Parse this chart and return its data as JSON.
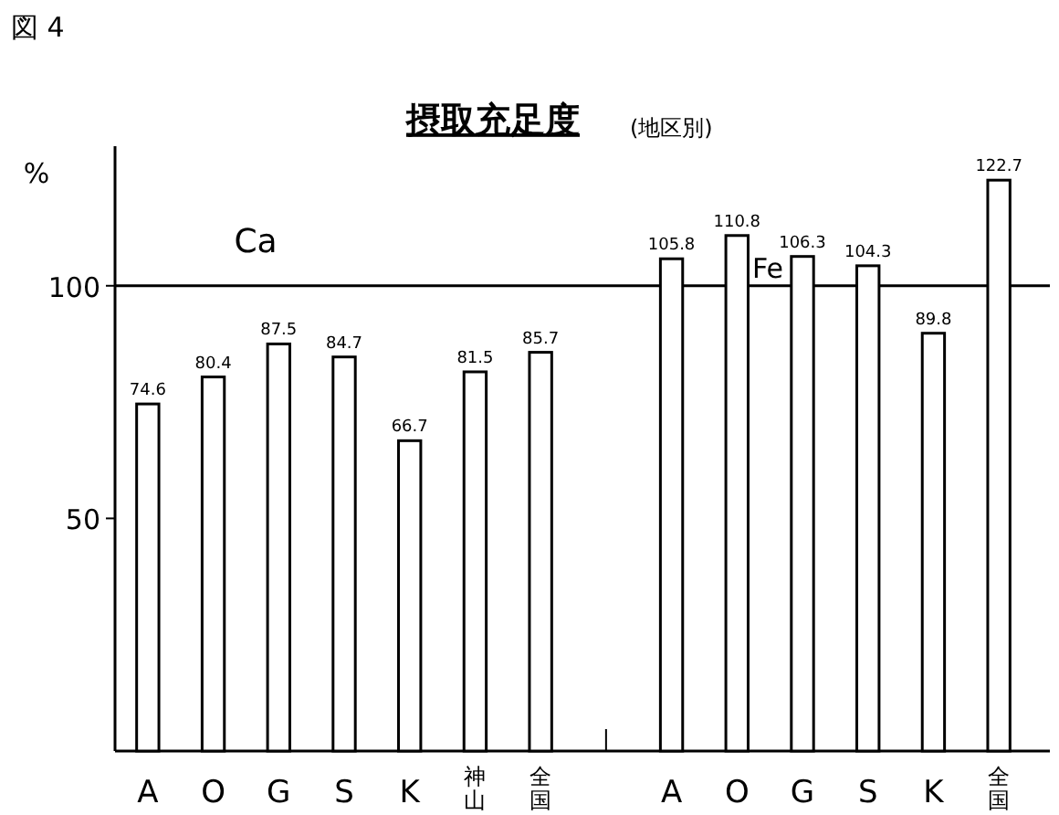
{
  "chart_data": {
    "type": "bar",
    "title": "摂取充足度",
    "subtitle": "(地区別)",
    "ylabel": "%",
    "categories": [
      "A",
      "O",
      "G",
      "S",
      "K",
      "神山",
      "全国",
      null,
      "A",
      "O",
      "G",
      "S",
      "K",
      "全国"
    ],
    "values": [
      74.6,
      80.4,
      87.5,
      84.7,
      66.7,
      81.5,
      85.7,
      null,
      105.8,
      110.8,
      106.3,
      104.3,
      89.8,
      122.7
    ],
    "color": "#ffffff",
    "data_labels": true,
    "ylim": [
      0,
      130
    ],
    "yticks": [
      50,
      100
    ],
    "ref_lines": [
      {
        "axis": "y",
        "value": 100
      }
    ],
    "annotations": [
      "図 4",
      "Ca",
      "Fe"
    ],
    "grid": false
  }
}
